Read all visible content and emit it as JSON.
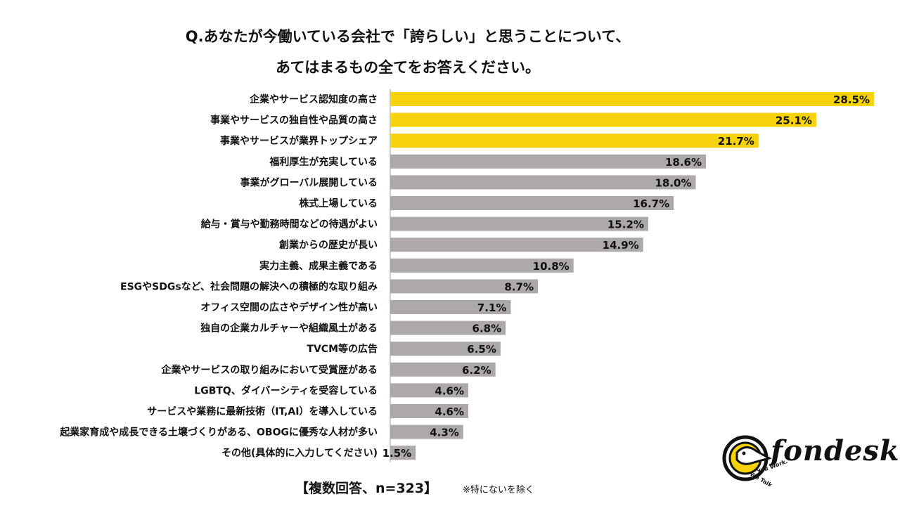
{
  "title": {
    "line1": "Q.あなたが今働いている会社で「誇らしい」と思うことについて、",
    "line2": "あてはまるもの全てをお答えください。"
  },
  "chart_data": {
    "type": "bar",
    "orientation": "horizontal",
    "categories": [
      "企業やサービス認知度の高さ",
      "事業やサービスの独自性や品質の高さ",
      "事業やサービスが業界トップシェア",
      "福利厚生が充実している",
      "事業がグローバル展開している",
      "株式上場している",
      "給与・賞与や勤務時間などの待遇がよい",
      "創業からの歴史が長い",
      "実力主義、成果主義である",
      "ESGやSDGsなど、社会問題の解決への積極的な取り組み",
      "オフィス空間の広さやデザイン性が高い",
      "独自の企業カルチャーや組織風土がある",
      "TVCM等の広告",
      "企業やサービスの取り組みにおいて受賞歴がある",
      "LGBTQ、ダイバーシティを受容している",
      "サービスや業務に最新技術（IT,AI）を導入している",
      "起業家育成や成長できる土壌づくりがある、OBOGに優秀な人材が多い",
      "その他(具体的に入力してください)"
    ],
    "values": [
      28.5,
      25.1,
      21.7,
      18.6,
      18.0,
      16.7,
      15.2,
      14.9,
      10.8,
      8.7,
      7.1,
      6.8,
      6.5,
      6.2,
      4.6,
      4.6,
      4.3,
      1.5
    ],
    "labels": [
      "28.5%",
      "25.1%",
      "21.7%",
      "18.6%",
      "18.0%",
      "16.7%",
      "15.2%",
      "14.9%",
      "10.8%",
      "8.7%",
      "7.1%",
      "6.8%",
      "6.5%",
      "6.2%",
      "4.6%",
      "4.6%",
      "4.3%",
      "1.5%"
    ],
    "highlight_count": 3,
    "colors": {
      "highlight": "#F5D20A",
      "default": "#ADA9A9",
      "axis": "#999999"
    },
    "xlim": [
      0,
      28.5
    ],
    "grid": false,
    "legend": "none"
  },
  "footer": {
    "main": "【複数回答、n=323】",
    "note": "※特にないを除く"
  },
  "logo": {
    "name": "fondesk",
    "tagline1": "We Talk.",
    "tagline2": "You Work."
  }
}
